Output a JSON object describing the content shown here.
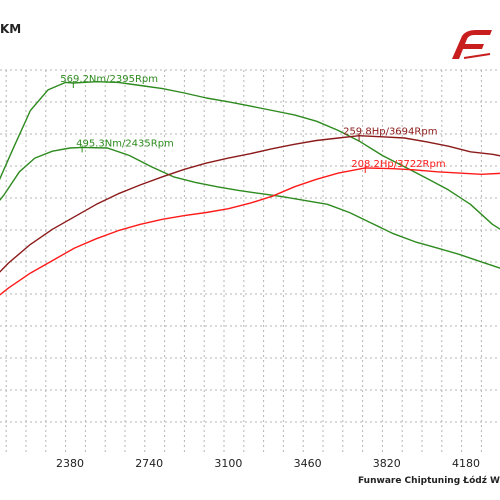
{
  "header": {
    "unit_fragment": "KM"
  },
  "footer": {
    "credit": "Funware Chiptuning Łódź W"
  },
  "colors": {
    "torque_tuned": "#2e8b1f",
    "torque_stock": "#2e8b1f",
    "power_tuned": "#8b1a1a",
    "power_stock": "#ff1a1a",
    "grid": "#b5b5b5",
    "logo": "#c81e1e"
  },
  "chart_data": {
    "type": "line",
    "xlim": [
      2000,
      4540
    ],
    "x_ticks": [
      2380,
      2740,
      3100,
      3460,
      3820,
      4180
    ],
    "x_tick_labels": [
      "2380",
      "2740",
      "3100",
      "3460",
      "3820",
      "4180"
    ],
    "series": [
      {
        "key": "torque_tuned",
        "points": [
          [
            2000,
            145
          ],
          [
            2060,
            190
          ],
          [
            2120,
            238
          ],
          [
            2200,
            300
          ],
          [
            2280,
            333
          ],
          [
            2360,
            345
          ],
          [
            2395,
            344
          ],
          [
            2500,
            346
          ],
          [
            2600,
            345
          ],
          [
            2700,
            340
          ],
          [
            2800,
            335
          ],
          [
            2900,
            328
          ],
          [
            3000,
            320
          ],
          [
            3100,
            314
          ],
          [
            3200,
            307
          ],
          [
            3300,
            300
          ],
          [
            3400,
            293
          ],
          [
            3500,
            283
          ],
          [
            3600,
            268
          ],
          [
            3700,
            250
          ],
          [
            3800,
            228
          ],
          [
            3900,
            210
          ],
          [
            4000,
            192
          ],
          [
            4100,
            173
          ],
          [
            4200,
            150
          ],
          [
            4300,
            118
          ],
          [
            4360,
            105
          ]
        ]
      },
      {
        "key": "torque_stock",
        "points": [
          [
            2000,
            130
          ],
          [
            2080,
            165
          ],
          [
            2150,
            202
          ],
          [
            2220,
            224
          ],
          [
            2300,
            235
          ],
          [
            2380,
            240
          ],
          [
            2435,
            241
          ],
          [
            2550,
            240
          ],
          [
            2650,
            228
          ],
          [
            2750,
            210
          ],
          [
            2850,
            194
          ],
          [
            2950,
            185
          ],
          [
            3050,
            178
          ],
          [
            3150,
            172
          ],
          [
            3250,
            167
          ],
          [
            3350,
            162
          ],
          [
            3450,
            156
          ],
          [
            3550,
            150
          ],
          [
            3650,
            137
          ],
          [
            3750,
            120
          ],
          [
            3850,
            103
          ],
          [
            3950,
            90
          ],
          [
            4050,
            80
          ],
          [
            4150,
            70
          ],
          [
            4250,
            58
          ],
          [
            4300,
            52
          ],
          [
            4360,
            45
          ]
        ]
      },
      {
        "key": "power_tuned",
        "points": [
          [
            2000,
            20
          ],
          [
            2100,
            56
          ],
          [
            2200,
            86
          ],
          [
            2300,
            110
          ],
          [
            2400,
            130
          ],
          [
            2500,
            150
          ],
          [
            2600,
            167
          ],
          [
            2700,
            181
          ],
          [
            2800,
            194
          ],
          [
            2900,
            206
          ],
          [
            3000,
            216
          ],
          [
            3100,
            224
          ],
          [
            3200,
            231
          ],
          [
            3300,
            239
          ],
          [
            3400,
            246
          ],
          [
            3500,
            252
          ],
          [
            3600,
            256
          ],
          [
            3694,
            259.8
          ],
          [
            3800,
            258
          ],
          [
            3900,
            256
          ],
          [
            4000,
            250
          ],
          [
            4100,
            243
          ],
          [
            4200,
            234
          ],
          [
            4300,
            230
          ],
          [
            4360,
            226
          ]
        ]
      },
      {
        "key": "power_stock",
        "points": [
          [
            2000,
            -12
          ],
          [
            2100,
            16
          ],
          [
            2200,
            40
          ],
          [
            2300,
            60
          ],
          [
            2400,
            80
          ],
          [
            2500,
            95
          ],
          [
            2600,
            108
          ],
          [
            2700,
            118
          ],
          [
            2800,
            126
          ],
          [
            2900,
            132
          ],
          [
            3000,
            137
          ],
          [
            3100,
            143
          ],
          [
            3200,
            152
          ],
          [
            3300,
            163
          ],
          [
            3400,
            178
          ],
          [
            3500,
            190
          ],
          [
            3600,
            200
          ],
          [
            3722,
            208.2
          ],
          [
            3850,
            207
          ],
          [
            3950,
            205
          ],
          [
            4050,
            202
          ],
          [
            4150,
            200
          ],
          [
            4250,
            198
          ],
          [
            4360,
            200
          ]
        ]
      }
    ],
    "annotations": [
      {
        "text": "569.2Nm/2395Rpm",
        "series": "torque_tuned",
        "x": 2395,
        "y": 344
      },
      {
        "text": "495.3Nm/2435Rpm",
        "series": "torque_stock",
        "x": 2435,
        "y": 241
      },
      {
        "text": "259.8Hp/3694Rpm",
        "series": "power_tuned",
        "x": 3694,
        "y": 259.8
      },
      {
        "text": "208.2Hp/3722Rpm",
        "series": "power_stock",
        "x": 3722,
        "y": 208.2
      }
    ]
  }
}
